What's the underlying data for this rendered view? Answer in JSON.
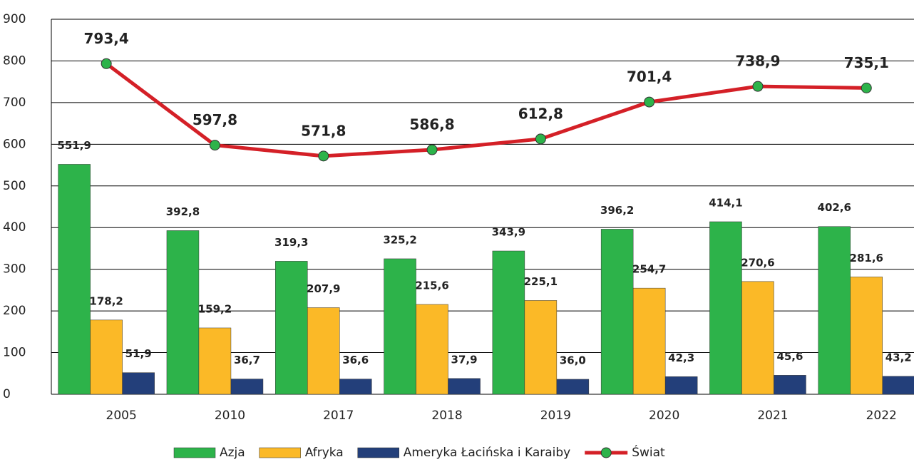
{
  "chart_data": {
    "type": "bar",
    "categories": [
      "2005",
      "2010",
      "2017",
      "2018",
      "2019",
      "2020",
      "2021",
      "2022"
    ],
    "series": [
      {
        "name": "Azja",
        "type": "bar",
        "color": "#2db34a",
        "values": [
          551.9,
          392.8,
          319.3,
          325.2,
          343.9,
          396.2,
          414.1,
          402.6
        ],
        "value_labels": [
          "551,9",
          "392,8",
          "319,3",
          "325,2",
          "343,9",
          "396,2",
          "414,1",
          "402,6"
        ]
      },
      {
        "name": "Afryka",
        "type": "bar",
        "color": "#fbb927",
        "values": [
          178.2,
          159.2,
          207.9,
          215.6,
          225.1,
          254.7,
          270.6,
          281.6
        ],
        "value_labels": [
          "178,2",
          "159,2",
          "207,9",
          "215,6",
          "225,1",
          "254,7",
          "270,6",
          "281,6"
        ]
      },
      {
        "name": "Ameryka Łacińska i Karaiby",
        "type": "bar",
        "color": "#233f7a",
        "values": [
          51.9,
          36.7,
          36.6,
          37.9,
          36.0,
          42.3,
          45.6,
          43.2
        ],
        "value_labels": [
          "51,9",
          "36,7",
          "36,6",
          "37,9",
          "36,0",
          "42,3",
          "45,6",
          "43,2"
        ]
      },
      {
        "name": "Świat",
        "type": "line",
        "color": "#d42027",
        "marker_color": "#2db34a",
        "values": [
          793.4,
          597.8,
          571.8,
          586.8,
          612.8,
          701.4,
          738.9,
          735.1
        ],
        "value_labels": [
          "793,4",
          "597,8",
          "571,8",
          "586,8",
          "612,8",
          "701,4",
          "738,9",
          "735,1"
        ]
      }
    ],
    "ylim": [
      0,
      900
    ],
    "yticks": [
      0,
      100,
      200,
      300,
      400,
      500,
      600,
      700,
      800,
      900
    ],
    "grid": true,
    "legend": "bottom"
  }
}
